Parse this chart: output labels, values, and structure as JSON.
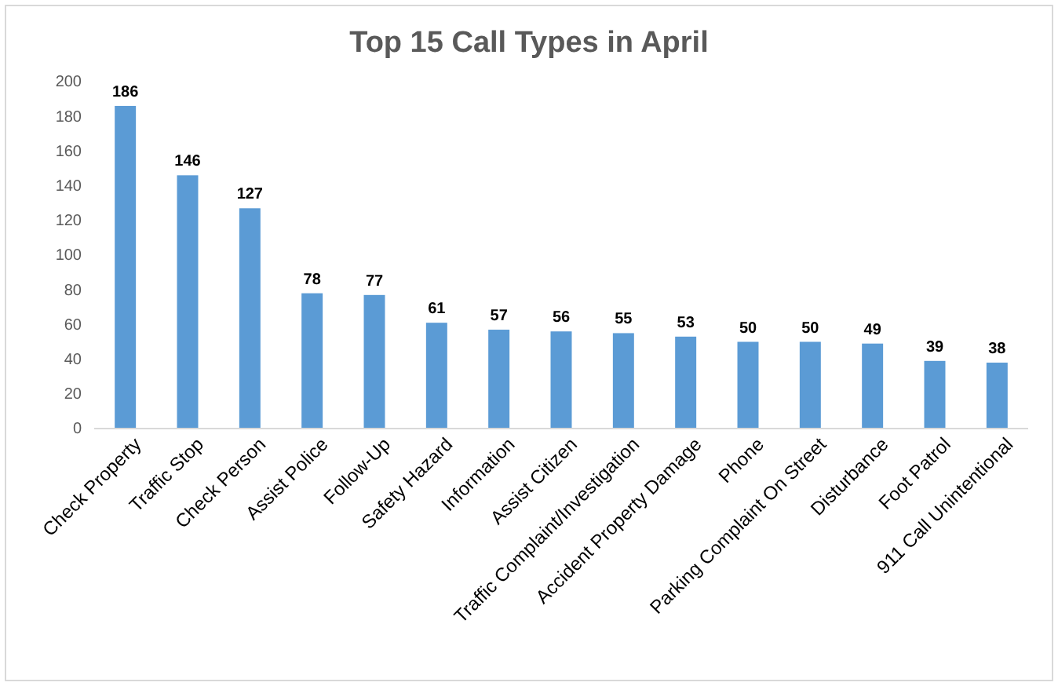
{
  "chart_data": {
    "type": "bar",
    "title": "Top 15 Call Types in April",
    "categories": [
      "Check Property",
      "Traffic Stop",
      "Check Person",
      "Assist Police",
      "Follow-Up",
      "Safety Hazard",
      "Information",
      "Assist Citizen",
      "Traffic Complaint/Investigation",
      "Accident Property Damage",
      "Phone",
      "Parking Complaint On Street",
      "Disturbance",
      "Foot Patrol",
      "911 Call Unintentional"
    ],
    "values": [
      186,
      146,
      127,
      78,
      77,
      61,
      57,
      56,
      55,
      53,
      50,
      50,
      49,
      39,
      38
    ],
    "color": "#5b9bd5",
    "ylim": [
      0,
      200
    ],
    "yticks": [
      0,
      20,
      40,
      60,
      80,
      100,
      120,
      140,
      160,
      180,
      200
    ],
    "data_labels": true,
    "grid": false
  }
}
